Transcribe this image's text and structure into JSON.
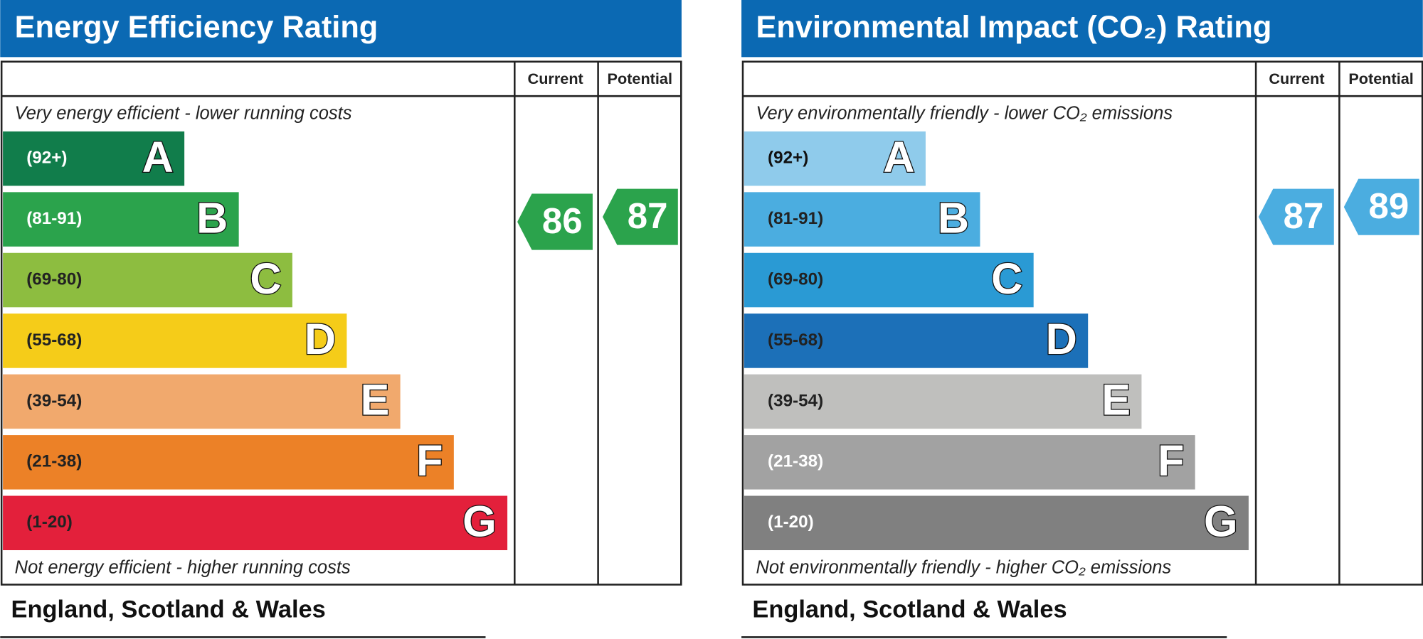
{
  "panels": [
    {
      "title": "Energy Efficiency Rating",
      "columns": [
        "Current",
        "Potential"
      ],
      "top_note": "Very energy efficient - lower running costs",
      "bottom_note": "Not energy efficient - higher running costs",
      "footer": "England, Scotland & Wales",
      "bands": [
        {
          "range": "(92+)",
          "letter": "A",
          "color": "#117d4b",
          "text_color": "#ffffff"
        },
        {
          "range": "(81-91)",
          "letter": "B",
          "color": "#2ba34c",
          "text_color": "#ffffff"
        },
        {
          "range": "(69-80)",
          "letter": "C",
          "color": "#8dbd40",
          "text_color": "#222222"
        },
        {
          "range": "(55-68)",
          "letter": "D",
          "color": "#f5cc19",
          "text_color": "#222222"
        },
        {
          "range": "(39-54)",
          "letter": "E",
          "color": "#f1a96d",
          "text_color": "#222222"
        },
        {
          "range": "(21-38)",
          "letter": "F",
          "color": "#ec8127",
          "text_color": "#222222"
        },
        {
          "range": "(1-20)",
          "letter": "G",
          "color": "#e3203b",
          "text_color": "#222222"
        }
      ],
      "current": 86,
      "potential": 87,
      "arrow_color": "#2ba34c"
    },
    {
      "title": "Environmental Impact (CO₂) Rating",
      "columns": [
        "Current",
        "Potential"
      ],
      "top_note": "Very environmentally friendly - lower CO₂ emissions",
      "bottom_note": "Not environmentally friendly - higher CO₂ emissions",
      "footer": "England, Scotland & Wales",
      "bands": [
        {
          "range": "(92+)",
          "letter": "A",
          "color": "#8fcbeb",
          "text_color": "#111111"
        },
        {
          "range": "(81-91)",
          "letter": "B",
          "color": "#4bade0",
          "text_color": "#222222"
        },
        {
          "range": "(69-80)",
          "letter": "C",
          "color": "#2a9ad4",
          "text_color": "#222222"
        },
        {
          "range": "(55-68)",
          "letter": "D",
          "color": "#1c70b8",
          "text_color": "#222222"
        },
        {
          "range": "(39-54)",
          "letter": "E",
          "color": "#bfbfbd",
          "text_color": "#222222"
        },
        {
          "range": "(21-38)",
          "letter": "F",
          "color": "#a2a2a2",
          "text_color": "#ffffff"
        },
        {
          "range": "(1-20)",
          "letter": "G",
          "color": "#808080",
          "text_color": "#ffffff"
        }
      ],
      "current": 87,
      "potential": 89,
      "arrow_color": "#4bade0"
    }
  ]
}
